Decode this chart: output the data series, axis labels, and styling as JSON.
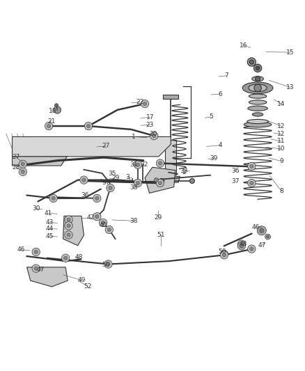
{
  "background_color": "#ffffff",
  "line_color": "#333333",
  "label_color": "#333333",
  "label_fontsize": 6.5,
  "fig_width": 4.38,
  "fig_height": 5.33,
  "dpi": 100
}
